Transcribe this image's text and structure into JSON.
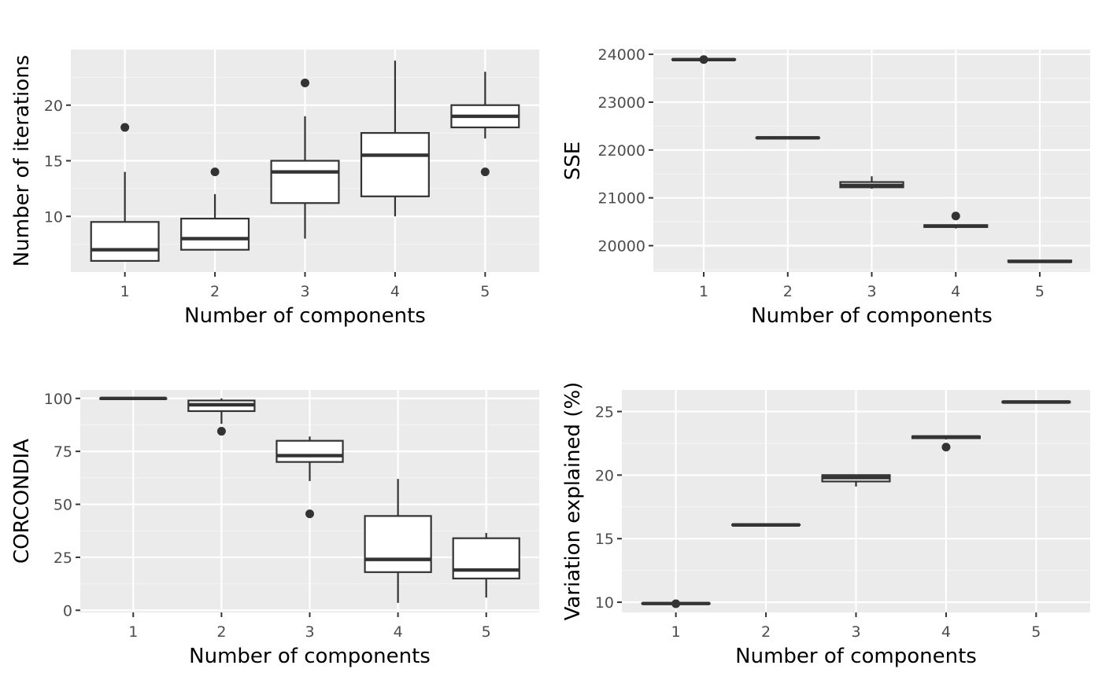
{
  "colors": {
    "panel_background": "#ebebeb",
    "grid_major": "#ffffff",
    "grid_minor": "#f5f5f5",
    "box_fill": "#ffffff",
    "box_line": "#333333",
    "tick_label": "#4d4d4d",
    "axis_title": "#000000"
  },
  "chart_data": [
    {
      "id": "iterations",
      "type": "boxplot",
      "xlabel": "Number of components",
      "ylabel": "Number of iterations",
      "categories": [
        "1",
        "2",
        "3",
        "4",
        "5"
      ],
      "ylim": [
        5,
        25
      ],
      "yticks": [
        10,
        15,
        20
      ],
      "ytick_labels": [
        "10",
        "15",
        "20"
      ],
      "grid": true,
      "boxes": [
        {
          "whisker_low": 6,
          "q1": 6,
          "median": 7,
          "q3": 9.5,
          "whisker_high": 14,
          "outliers": [
            18
          ]
        },
        {
          "whisker_low": 7,
          "q1": 7,
          "median": 8,
          "q3": 9.8,
          "whisker_high": 12,
          "outliers": [
            14
          ]
        },
        {
          "whisker_low": 8,
          "q1": 11.2,
          "median": 14,
          "q3": 15,
          "whisker_high": 19,
          "outliers": [
            22
          ]
        },
        {
          "whisker_low": 10,
          "q1": 11.8,
          "median": 15.5,
          "q3": 17.5,
          "whisker_high": 24,
          "outliers": []
        },
        {
          "whisker_low": 17,
          "q1": 18,
          "median": 19,
          "q3": 20,
          "whisker_high": 23,
          "outliers": [
            14
          ]
        }
      ]
    },
    {
      "id": "sse",
      "type": "boxplot",
      "xlabel": "Number of components",
      "ylabel": "SSE",
      "categories": [
        "1",
        "2",
        "3",
        "4",
        "5"
      ],
      "ylim": [
        19450,
        24100
      ],
      "yticks": [
        20000,
        21000,
        22000,
        23000,
        24000
      ],
      "ytick_labels": [
        "20000",
        "21000",
        "22000",
        "23000",
        "24000"
      ],
      "grid": true,
      "boxes": [
        {
          "whisker_low": 23890,
          "q1": 23890,
          "median": 23890,
          "q3": 23895,
          "whisker_high": 23895,
          "outliers": [
            23890
          ]
        },
        {
          "whisker_low": 22250,
          "q1": 22250,
          "median": 22255,
          "q3": 22260,
          "whisker_high": 22260,
          "outliers": []
        },
        {
          "whisker_low": 21190,
          "q1": 21220,
          "median": 21260,
          "q3": 21330,
          "whisker_high": 21450,
          "outliers": []
        },
        {
          "whisker_low": 20360,
          "q1": 20390,
          "median": 20410,
          "q3": 20430,
          "whisker_high": 20440,
          "outliers": [
            20620
          ]
        },
        {
          "whisker_low": 19640,
          "q1": 19660,
          "median": 19670,
          "q3": 19690,
          "whisker_high": 19700,
          "outliers": []
        }
      ]
    },
    {
      "id": "corcondia",
      "type": "boxplot",
      "xlabel": "Number of components",
      "ylabel": "CORCONDIA",
      "categories": [
        "1",
        "2",
        "3",
        "4",
        "5"
      ],
      "ylim": [
        -1,
        104
      ],
      "yticks": [
        0,
        25,
        50,
        75,
        100
      ],
      "ytick_labels": [
        "0",
        "25",
        "50",
        "75",
        "100"
      ],
      "grid": true,
      "boxes": [
        {
          "whisker_low": 100,
          "q1": 100,
          "median": 100,
          "q3": 100,
          "whisker_high": 100,
          "outliers": []
        },
        {
          "whisker_low": 88,
          "q1": 94,
          "median": 97,
          "q3": 99,
          "whisker_high": 100,
          "outliers": [
            84.5
          ]
        },
        {
          "whisker_low": 61,
          "q1": 70,
          "median": 73,
          "q3": 80,
          "whisker_high": 82,
          "outliers": [
            45.5
          ]
        },
        {
          "whisker_low": 3.5,
          "q1": 18,
          "median": 24,
          "q3": 44.5,
          "whisker_high": 62,
          "outliers": []
        },
        {
          "whisker_low": 6,
          "q1": 15,
          "median": 19,
          "q3": 34,
          "whisker_high": 36.5,
          "outliers": []
        }
      ]
    },
    {
      "id": "variation",
      "type": "boxplot",
      "xlabel": "Number of components",
      "ylabel": "Variation explained (%)",
      "categories": [
        "1",
        "2",
        "3",
        "4",
        "5"
      ],
      "ylim": [
        9.2,
        26.7
      ],
      "yticks": [
        10,
        15,
        20,
        25
      ],
      "ytick_labels": [
        "10",
        "15",
        "20",
        "25"
      ],
      "grid": true,
      "boxes": [
        {
          "whisker_low": 9.85,
          "q1": 9.88,
          "median": 9.9,
          "q3": 9.92,
          "whisker_high": 9.95,
          "outliers": [
            9.88
          ]
        },
        {
          "whisker_low": 16.05,
          "q1": 16.07,
          "median": 16.08,
          "q3": 16.1,
          "whisker_high": 16.12,
          "outliers": []
        },
        {
          "whisker_low": 19.1,
          "q1": 19.5,
          "median": 19.8,
          "q3": 20.0,
          "whisker_high": 20.05,
          "outliers": []
        },
        {
          "whisker_low": 22.8,
          "q1": 22.9,
          "median": 23.0,
          "q3": 23.05,
          "whisker_high": 23.1,
          "outliers": [
            22.2
          ]
        },
        {
          "whisker_low": 25.7,
          "q1": 25.72,
          "median": 25.75,
          "q3": 25.78,
          "whisker_high": 25.85,
          "outliers": []
        }
      ]
    }
  ]
}
